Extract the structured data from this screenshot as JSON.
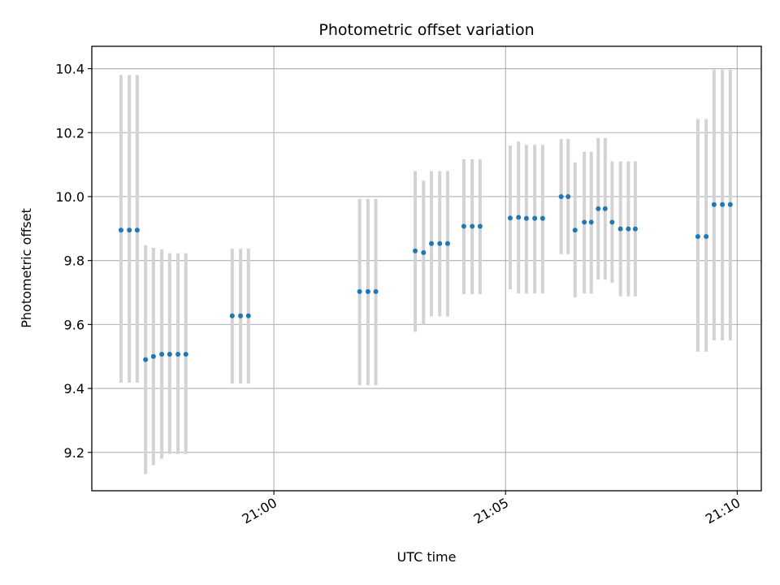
{
  "chart_data": {
    "type": "scatter",
    "title": "Photometric offset variation",
    "xlabel": "UTC time",
    "ylabel": "Photometric offset",
    "x_ticks": [
      "21:00",
      "21:05",
      "21:10"
    ],
    "x_tick_minutes": [
      0,
      5,
      10
    ],
    "xlim_minutes": [
      -3.93,
      10.52
    ],
    "y_ticks": [
      "9.2",
      "9.4",
      "9.6",
      "9.8",
      "10.0",
      "10.2",
      "10.4"
    ],
    "ylim": [
      9.08,
      10.47
    ],
    "grid": true,
    "colors": {
      "points": "#1f77b4",
      "errorbars": "#d3d3d3",
      "grid": "#b0b0b0"
    },
    "series": [
      {
        "x_minutes_from_2100": [
          -3.3,
          -3.12,
          -2.95,
          -2.77,
          -2.6,
          -2.42,
          -2.25,
          -2.07,
          -1.9,
          -0.9,
          -0.72,
          -0.55,
          1.85,
          2.03,
          2.2,
          3.05,
          3.23,
          3.4,
          3.58,
          3.75,
          4.1,
          4.28,
          4.45,
          5.1,
          5.28,
          5.45,
          5.63,
          5.8,
          6.2,
          6.35,
          6.5,
          6.7,
          6.85,
          7.0,
          7.15,
          7.3,
          7.48,
          7.65,
          7.8,
          9.15,
          9.33,
          9.5,
          9.68,
          9.85
        ],
        "y": [
          9.895,
          9.895,
          9.895,
          9.49,
          9.5,
          9.507,
          9.507,
          9.507,
          9.507,
          9.627,
          9.627,
          9.627,
          9.703,
          9.703,
          9.703,
          9.83,
          9.825,
          9.853,
          9.853,
          9.853,
          9.907,
          9.907,
          9.907,
          9.933,
          9.935,
          9.932,
          9.932,
          9.932,
          10.0,
          10.0,
          9.895,
          9.92,
          9.92,
          9.962,
          9.962,
          9.92,
          9.899,
          9.899,
          9.899,
          9.875,
          9.875,
          9.975,
          9.975,
          9.975
        ],
        "y_low": [
          9.418,
          9.418,
          9.418,
          9.132,
          9.16,
          9.18,
          9.195,
          9.195,
          9.195,
          9.415,
          9.415,
          9.415,
          9.41,
          9.41,
          9.41,
          9.577,
          9.6,
          9.625,
          9.625,
          9.625,
          9.695,
          9.695,
          9.695,
          9.71,
          9.697,
          9.697,
          9.697,
          9.697,
          9.82,
          9.82,
          9.685,
          9.697,
          9.697,
          9.74,
          9.74,
          9.73,
          9.688,
          9.688,
          9.688,
          9.515,
          9.515,
          9.55,
          9.55,
          9.55
        ],
        "y_high": [
          10.38,
          10.38,
          10.38,
          9.848,
          9.84,
          9.835,
          9.823,
          9.823,
          9.823,
          9.837,
          9.837,
          9.837,
          9.993,
          9.993,
          9.993,
          10.08,
          10.05,
          10.08,
          10.08,
          10.08,
          10.117,
          10.117,
          10.117,
          10.16,
          10.172,
          10.162,
          10.162,
          10.162,
          10.18,
          10.18,
          10.107,
          10.14,
          10.14,
          10.183,
          10.183,
          10.11,
          10.11,
          10.11,
          10.11,
          10.243,
          10.243,
          10.397,
          10.397,
          10.397
        ]
      }
    ]
  }
}
